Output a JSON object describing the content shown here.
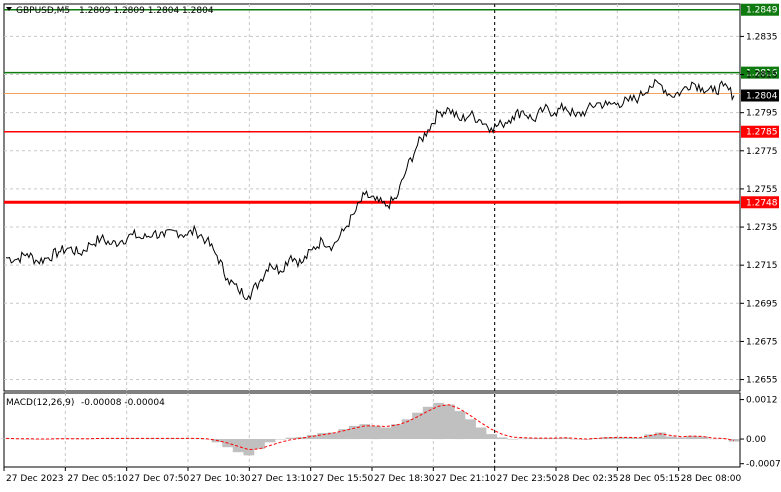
{
  "chart_header": {
    "symbol_label": "GBPUSD,M5",
    "ohlc": "1.2809 1.2809 1.2804 1.2804"
  },
  "macd_header": {
    "label": "MACD(12,26,9)",
    "values": "-0.00008 -0.00004"
  },
  "colors": {
    "background": "#ffffff",
    "grid": "#c8c8c8",
    "price_line": "#000000",
    "green_level": "#0f7a0f",
    "red_level": "#ff0000",
    "macd_hist": "#c0c0c0",
    "macd_signal": "#ff0000",
    "bid_line": "#f4a460"
  },
  "chart_data": [
    {
      "type": "line",
      "title": "",
      "series": [
        {
          "name": "",
          "values": [
            1.2719,
            1.2718,
            1.2721,
            1.2717,
            1.2719,
            1.2722,
            1.2724,
            1.2721,
            1.2726,
            1.2729,
            1.2726,
            1.2728,
            1.2731,
            1.2729,
            1.2732,
            1.273,
            1.2733,
            1.2731,
            1.2733,
            1.2728,
            1.272,
            1.2708,
            1.2702,
            1.2699,
            1.2706,
            1.2716,
            1.2712,
            1.272,
            1.2716,
            1.2723,
            1.2728,
            1.2725,
            1.2733,
            1.2742,
            1.2752,
            1.2749,
            1.2746,
            1.275,
            1.2766,
            1.2778,
            1.2786,
            1.2795,
            1.2797,
            1.2791,
            1.2794,
            1.2791,
            1.2787,
            1.2789,
            1.2793,
            1.2796,
            1.2791,
            1.2797,
            1.2795,
            1.2798,
            1.2793,
            1.2796,
            1.28,
            1.2799,
            1.28,
            1.2801,
            1.2803,
            1.2809,
            1.281,
            1.2804,
            1.2806,
            1.2811,
            1.2808,
            1.2806,
            1.2809,
            1.2804
          ]
        }
      ],
      "x_tick_labels": [
        "27 Dec 2023",
        "27 Dec 05:10",
        "27 Dec 07:50",
        "27 Dec 10:30",
        "27 Dec 13:10",
        "27 Dec 15:50",
        "27 Dec 18:30",
        "27 Dec 21:10",
        "27 Dec 23:50",
        "28 Dec 02:35",
        "28 Dec 05:15",
        "28 Dec 08:00"
      ],
      "y_tick_labels": [
        "1.2835",
        "1.2815",
        "1.2795",
        "1.2775",
        "1.2755",
        "1.2735",
        "1.2715",
        "1.2695",
        "1.2675",
        "1.2655"
      ],
      "y_ticks": [
        1.2835,
        1.2815,
        1.2795,
        1.2775,
        1.2755,
        1.2735,
        1.2715,
        1.2695,
        1.2675,
        1.2655
      ],
      "ylim": [
        1.2649,
        1.2852
      ],
      "levels": [
        {
          "value": 1.2849,
          "label": "1.2849",
          "color": "#0f7a0f"
        },
        {
          "value": 1.2816,
          "label": "1.2816",
          "color": "#0f7a0f"
        },
        {
          "value": 1.2785,
          "label": "1.2785",
          "color": "#ff0000"
        },
        {
          "value": 1.2748,
          "label": "1.2748",
          "color": "#ff0000"
        }
      ],
      "current_price": {
        "value": 1.2804,
        "label": "1.2804"
      },
      "grid": true
    },
    {
      "type": "bar",
      "title": "",
      "values": [
        2e-05,
        1e-05,
        0.0,
        -1e-05,
        0.0,
        2e-05,
        2e-05,
        1e-05,
        1e-05,
        2e-05,
        2e-05,
        2e-05,
        3e-05,
        2e-05,
        3e-05,
        2e-05,
        3e-05,
        2e-05,
        2e-05,
        0.0,
        -0.0001,
        -0.00025,
        -0.0004,
        -0.0005,
        -0.0003,
        -0.0001,
        0.0,
        4e-05,
        6e-05,
        0.00012,
        0.00018,
        0.0002,
        0.0003,
        0.0004,
        0.00045,
        0.0004,
        0.00035,
        0.00045,
        0.0006,
        0.0008,
        0.00098,
        0.0011,
        0.00105,
        0.00085,
        0.0006,
        0.00035,
        0.00015,
        5e-05,
        0.0,
        2e-05,
        3e-05,
        3e-05,
        3e-05,
        4e-05,
        0.0,
        -2e-05,
        3e-05,
        6e-05,
        6e-05,
        5e-05,
        4e-05,
        0.00014,
        0.0002,
        8e-05,
        5e-05,
        0.0001,
        8e-05,
        1e-05,
        2e-05,
        -8e-05
      ],
      "signal": [
        2e-05,
        1e-05,
        1e-05,
        0.0,
        0.0,
        1e-05,
        1e-05,
        1e-05,
        1e-05,
        2e-05,
        2e-05,
        2e-05,
        2e-05,
        2e-05,
        2e-05,
        2e-05,
        2e-05,
        2e-05,
        2e-05,
        1e-05,
        -4e-05,
        -0.00012,
        -0.00022,
        -0.00032,
        -0.0003,
        -0.0002,
        -0.0001,
        -2e-05,
        3e-05,
        8e-05,
        0.00013,
        0.00018,
        0.00025,
        0.00033,
        0.0004,
        0.0004,
        0.00038,
        0.00042,
        0.00052,
        0.00068,
        0.00085,
        0.001,
        0.00104,
        0.00092,
        0.00072,
        0.0005,
        0.0003,
        0.00015,
        6e-05,
        4e-05,
        3e-05,
        3e-05,
        3e-05,
        4e-05,
        2e-05,
        0.0,
        2e-05,
        4e-05,
        5e-05,
        5e-05,
        4e-05,
        0.0001,
        0.00016,
        0.00011,
        7e-05,
        9e-05,
        8e-05,
        3e-05,
        2e-05,
        -4e-05
      ],
      "y_tick_labels": [
        "0.0012",
        "0.00",
        "-0.00075"
      ],
      "y_ticks": [
        0.0012,
        0.0,
        -0.00075
      ],
      "ylim": [
        -0.00085,
        0.0014
      ]
    }
  ]
}
